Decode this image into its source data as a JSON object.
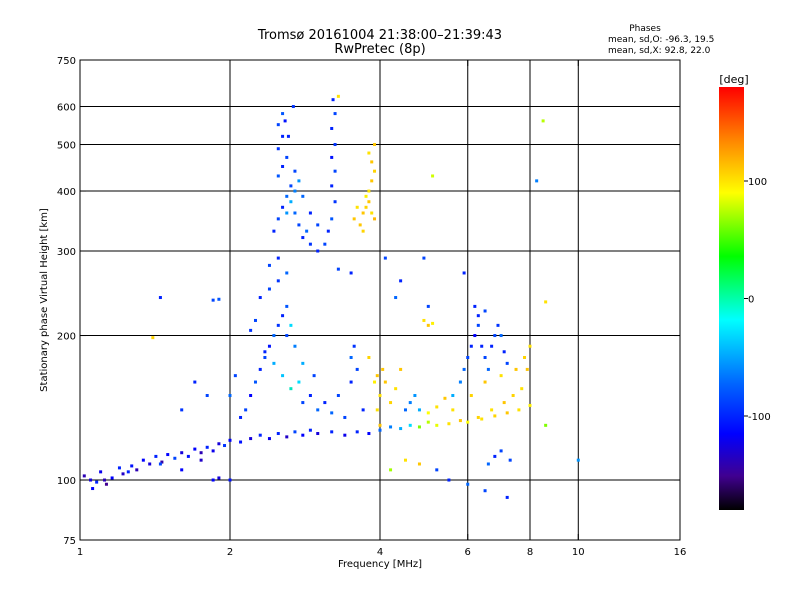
{
  "chart_data": {
    "type": "scatter",
    "title": "Tromsø 20161004 21:38:00–21:39:43",
    "subtitle": "RwPretec (8p)",
    "stats": {
      "heading": "Phases",
      "line1": "mean, sd,O: -96.3, 19.5",
      "line2": "mean, sd,X:  92.8, 22.0"
    },
    "xlabel": "Frequency [MHz]",
    "ylabel": "Stationary phase Virtual Height [km]",
    "xscale": "log",
    "yscale": "log",
    "xlim": [
      1,
      16
    ],
    "ylim": [
      75,
      750
    ],
    "xticks": [
      1,
      2,
      4,
      6,
      8,
      10,
      16
    ],
    "yticks": [
      75,
      100,
      200,
      300,
      400,
      500,
      600,
      750
    ],
    "xgrid": [
      2,
      4,
      6,
      8,
      10
    ],
    "ygrid": [
      100,
      200,
      300,
      400,
      500,
      600
    ],
    "grid": true,
    "colorbar": {
      "label": "[deg]",
      "range": [
        -180,
        180
      ],
      "ticks": [
        100,
        0,
        -100
      ]
    },
    "points": [
      [
        1.02,
        102,
        -140
      ],
      [
        1.05,
        100,
        -130
      ],
      [
        1.08,
        99,
        -110
      ],
      [
        1.1,
        104,
        -125
      ],
      [
        1.13,
        98,
        -150
      ],
      [
        1.16,
        101,
        -120
      ],
      [
        1.2,
        106,
        -110
      ],
      [
        1.22,
        103,
        -135
      ],
      [
        1.27,
        107,
        -115
      ],
      [
        1.3,
        105,
        -140
      ],
      [
        1.34,
        110,
        -120
      ],
      [
        1.38,
        108,
        -130
      ],
      [
        1.42,
        112,
        -110
      ],
      [
        1.46,
        109,
        -145
      ],
      [
        1.5,
        113,
        -120
      ],
      [
        1.55,
        111,
        -100
      ],
      [
        1.6,
        114,
        -130
      ],
      [
        1.65,
        112,
        -115
      ],
      [
        1.7,
        116,
        -120
      ],
      [
        1.75,
        114,
        -140
      ],
      [
        1.8,
        117,
        -110
      ],
      [
        1.85,
        115,
        -125
      ],
      [
        1.9,
        119,
        -130
      ],
      [
        1.95,
        118,
        -105
      ],
      [
        2.0,
        121,
        -120
      ],
      [
        2.1,
        120,
        -115
      ],
      [
        2.2,
        122,
        -130
      ],
      [
        2.3,
        124,
        -110
      ],
      [
        2.4,
        122,
        -125
      ],
      [
        2.5,
        125,
        -110
      ],
      [
        2.6,
        123,
        -135
      ],
      [
        2.7,
        126,
        -100
      ],
      [
        2.8,
        124,
        -120
      ],
      [
        2.9,
        127,
        -110
      ],
      [
        3.0,
        125,
        -130
      ],
      [
        3.2,
        126,
        -110
      ],
      [
        3.4,
        124,
        -125
      ],
      [
        3.6,
        126,
        -110
      ],
      [
        3.8,
        125,
        -120
      ],
      [
        4.0,
        127,
        -90
      ],
      [
        4.2,
        129,
        -80
      ],
      [
        4.4,
        128,
        -60
      ],
      [
        4.6,
        130,
        -40
      ],
      [
        4.8,
        129,
        40
      ],
      [
        5.0,
        132,
        60
      ],
      [
        5.2,
        130,
        80
      ],
      [
        5.5,
        131,
        100
      ],
      [
        5.8,
        133,
        110
      ],
      [
        6.0,
        132,
        90
      ],
      [
        6.4,
        134,
        100
      ],
      [
        6.8,
        136,
        105
      ],
      [
        7.2,
        138,
        110
      ],
      [
        7.6,
        140,
        100
      ],
      [
        8.0,
        143,
        95
      ],
      [
        1.06,
        96,
        -120
      ],
      [
        1.12,
        100,
        -140
      ],
      [
        1.25,
        104,
        -110
      ],
      [
        1.45,
        108,
        -100
      ],
      [
        1.6,
        105,
        -120
      ],
      [
        1.75,
        110,
        -135
      ],
      [
        1.9,
        101,
        -130
      ],
      [
        2.0,
        100,
        -115
      ],
      [
        1.85,
        100,
        -120
      ],
      [
        2.1,
        135,
        -110
      ],
      [
        2.15,
        140,
        -100
      ],
      [
        2.2,
        150,
        -120
      ],
      [
        2.25,
        160,
        -95
      ],
      [
        2.3,
        170,
        -110
      ],
      [
        2.35,
        180,
        -100
      ],
      [
        2.4,
        190,
        -115
      ],
      [
        2.45,
        200,
        -90
      ],
      [
        2.5,
        210,
        -105
      ],
      [
        2.55,
        220,
        -110
      ],
      [
        2.6,
        230,
        -95
      ],
      [
        2.3,
        240,
        -110
      ],
      [
        2.4,
        250,
        -100
      ],
      [
        2.5,
        260,
        -105
      ],
      [
        2.6,
        270,
        -90
      ],
      [
        2.4,
        280,
        -100
      ],
      [
        2.5,
        290,
        -110
      ],
      [
        2.2,
        205,
        -105
      ],
      [
        2.25,
        215,
        -100
      ],
      [
        2.35,
        185,
        -110
      ],
      [
        2.45,
        175,
        -60
      ],
      [
        2.55,
        165,
        -50
      ],
      [
        2.65,
        155,
        -30
      ],
      [
        2.75,
        160,
        -40
      ],
      [
        2.8,
        175,
        -60
      ],
      [
        2.7,
        190,
        -80
      ],
      [
        2.6,
        200,
        -100
      ],
      [
        2.65,
        210,
        -40
      ],
      [
        2.8,
        145,
        -100
      ],
      [
        2.9,
        150,
        -110
      ],
      [
        2.95,
        165,
        -100
      ],
      [
        3.0,
        140,
        -90
      ],
      [
        3.1,
        145,
        -110
      ],
      [
        3.3,
        150,
        -100
      ],
      [
        3.5,
        160,
        -110
      ],
      [
        3.6,
        170,
        -100
      ],
      [
        3.5,
        180,
        -90
      ],
      [
        3.55,
        190,
        -105
      ],
      [
        3.7,
        140,
        -110
      ],
      [
        3.4,
        135,
        -100
      ],
      [
        3.2,
        138,
        -90
      ],
      [
        2.45,
        330,
        -110
      ],
      [
        2.5,
        350,
        -100
      ],
      [
        2.55,
        370,
        -110
      ],
      [
        2.6,
        390,
        -90
      ],
      [
        2.65,
        410,
        -100
      ],
      [
        2.5,
        430,
        -95
      ],
      [
        2.55,
        450,
        -110
      ],
      [
        2.6,
        470,
        -100
      ],
      [
        2.5,
        490,
        -105
      ],
      [
        2.55,
        520,
        -110
      ],
      [
        2.5,
        550,
        -100
      ],
      [
        2.55,
        580,
        -95
      ],
      [
        2.7,
        360,
        -90
      ],
      [
        2.75,
        340,
        -100
      ],
      [
        2.8,
        320,
        -110
      ],
      [
        2.85,
        330,
        -90
      ],
      [
        2.9,
        310,
        -105
      ],
      [
        3.0,
        300,
        -110
      ],
      [
        3.1,
        310,
        -100
      ],
      [
        3.15,
        330,
        -110
      ],
      [
        3.2,
        350,
        -95
      ],
      [
        3.25,
        380,
        -105
      ],
      [
        3.2,
        410,
        -110
      ],
      [
        3.25,
        440,
        -100
      ],
      [
        3.2,
        470,
        -115
      ],
      [
        3.25,
        500,
        -105
      ],
      [
        3.2,
        540,
        -110
      ],
      [
        3.25,
        580,
        -100
      ],
      [
        3.22,
        620,
        -110
      ],
      [
        2.65,
        380,
        -60
      ],
      [
        2.7,
        400,
        -80
      ],
      [
        2.75,
        420,
        -70
      ],
      [
        2.8,
        390,
        -90
      ],
      [
        2.6,
        360,
        -70
      ],
      [
        2.9,
        360,
        -110
      ],
      [
        3.0,
        340,
        -100
      ],
      [
        2.7,
        440,
        -100
      ],
      [
        2.62,
        520,
        -110
      ],
      [
        2.68,
        600,
        -105
      ],
      [
        2.58,
        560,
        -115
      ],
      [
        3.8,
        380,
        110
      ],
      [
        3.85,
        360,
        100
      ],
      [
        3.9,
        350,
        115
      ],
      [
        3.75,
        370,
        105
      ],
      [
        3.7,
        360,
        110
      ],
      [
        3.8,
        400,
        100
      ],
      [
        3.85,
        420,
        110
      ],
      [
        3.9,
        440,
        105
      ],
      [
        3.85,
        460,
        110
      ],
      [
        3.8,
        480,
        100
      ],
      [
        3.9,
        500,
        110
      ],
      [
        3.75,
        390,
        95
      ],
      [
        3.65,
        340,
        110
      ],
      [
        3.7,
        330,
        105
      ],
      [
        3.55,
        350,
        110
      ],
      [
        3.6,
        370,
        100
      ],
      [
        4.0,
        150,
        100
      ],
      [
        4.1,
        160,
        110
      ],
      [
        4.2,
        145,
        105
      ],
      [
        4.3,
        155,
        100
      ],
      [
        4.4,
        170,
        110
      ],
      [
        3.9,
        160,
        95
      ],
      [
        3.95,
        165,
        110
      ],
      [
        4.5,
        140,
        -90
      ],
      [
        4.6,
        145,
        -80
      ],
      [
        4.7,
        150,
        -70
      ],
      [
        4.8,
        140,
        -60
      ],
      [
        5.0,
        138,
        90
      ],
      [
        5.2,
        142,
        100
      ],
      [
        5.4,
        148,
        110
      ],
      [
        5.6,
        140,
        100
      ],
      [
        6.1,
        150,
        105
      ],
      [
        6.5,
        160,
        110
      ],
      [
        7.0,
        165,
        100
      ],
      [
        7.5,
        170,
        110
      ],
      [
        7.8,
        180,
        105
      ],
      [
        8.0,
        190,
        100
      ],
      [
        7.9,
        170,
        110
      ],
      [
        7.7,
        155,
        100
      ],
      [
        7.4,
        150,
        105
      ],
      [
        7.1,
        145,
        110
      ],
      [
        6.7,
        140,
        100
      ],
      [
        6.3,
        135,
        105
      ],
      [
        5.6,
        150,
        -60
      ],
      [
        5.8,
        160,
        -80
      ],
      [
        5.9,
        170,
        -90
      ],
      [
        6.0,
        180,
        -100
      ],
      [
        6.1,
        190,
        -110
      ],
      [
        6.2,
        200,
        -120
      ],
      [
        6.3,
        210,
        -100
      ],
      [
        6.4,
        190,
        -110
      ],
      [
        6.5,
        180,
        -100
      ],
      [
        6.6,
        170,
        -90
      ],
      [
        6.7,
        190,
        -110
      ],
      [
        6.8,
        200,
        -100
      ],
      [
        6.9,
        210,
        -105
      ],
      [
        7.0,
        200,
        -90
      ],
      [
        7.1,
        185,
        -110
      ],
      [
        7.2,
        175,
        -100
      ],
      [
        6.3,
        220,
        -110
      ],
      [
        6.5,
        225,
        -100
      ],
      [
        6.2,
        230,
        -110
      ],
      [
        7.0,
        115,
        -100
      ],
      [
        6.8,
        112,
        -110
      ],
      [
        7.3,
        110,
        -100
      ],
      [
        6.6,
        108,
        -90
      ],
      [
        4.2,
        105,
        50
      ],
      [
        4.5,
        110,
        100
      ],
      [
        4.8,
        108,
        110
      ],
      [
        5.2,
        105,
        -100
      ],
      [
        5.5,
        100,
        -110
      ],
      [
        6.0,
        98,
        -90
      ],
      [
        6.5,
        95,
        -100
      ],
      [
        7.2,
        92,
        -110
      ],
      [
        4.9,
        215,
        100
      ],
      [
        5.0,
        210,
        110
      ],
      [
        5.1,
        212,
        95
      ],
      [
        5.0,
        230,
        -100
      ],
      [
        4.4,
        260,
        -110
      ],
      [
        4.9,
        290,
        -100
      ],
      [
        5.9,
        270,
        -110
      ],
      [
        4.1,
        290,
        -100
      ],
      [
        4.3,
        240,
        -90
      ],
      [
        1.45,
        240,
        -110
      ],
      [
        1.85,
        237,
        -100
      ],
      [
        1.9,
        238,
        -95
      ],
      [
        1.7,
        160,
        -110
      ],
      [
        1.8,
        150,
        -100
      ],
      [
        1.6,
        140,
        -105
      ],
      [
        2.0,
        150,
        -90
      ],
      [
        2.05,
        165,
        -100
      ],
      [
        1.4,
        198,
        105
      ],
      [
        3.3,
        630,
        100
      ],
      [
        3.3,
        275,
        -100
      ],
      [
        3.5,
        270,
        -110
      ],
      [
        5.1,
        430,
        70
      ],
      [
        8.5,
        560,
        60
      ],
      [
        8.25,
        420,
        -80
      ],
      [
        8.6,
        130,
        40
      ],
      [
        10.0,
        110,
        -70
      ],
      [
        8.6,
        235,
        100
      ],
      [
        3.8,
        180,
        105
      ],
      [
        4.0,
        130,
        110
      ],
      [
        3.95,
        140,
        100
      ],
      [
        4.05,
        170,
        110
      ]
    ]
  }
}
